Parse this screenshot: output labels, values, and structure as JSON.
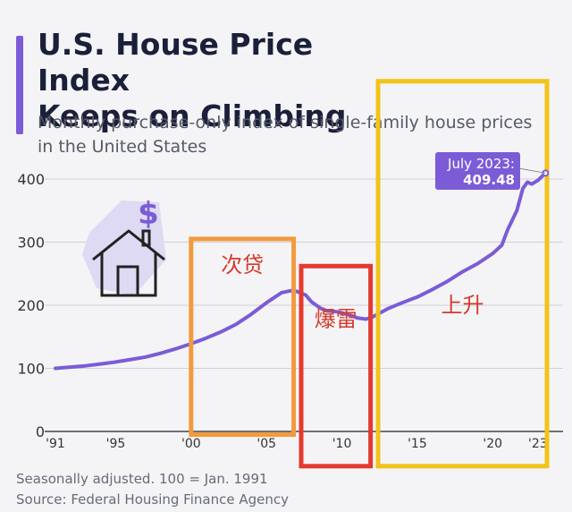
{
  "title_line1": "U.S. House Price Index",
  "title_line2": "Keeps on Climbing",
  "subtitle_line1": "Monthly purchase-only index of single-family house prices",
  "subtitle_line2": "in the United States",
  "footnote": "Seasonally adjusted. 100 = Jan. 1991",
  "source": "Source: Federal Housing Finance Agency",
  "colors": {
    "line": "#7b5cd6",
    "grid": "#cfcfd6",
    "orange_box": "#f39a3e",
    "red_box": "#e33a2f",
    "yellow_box": "#f2c318",
    "annotation_text": "#d43a2c",
    "callout_bg": "#7b5cd6",
    "icon_bg": "#dedaf3",
    "dollar": "#7b5cd6"
  },
  "callout": {
    "label": "July 2023:",
    "value": "409.48"
  },
  "annotations": [
    {
      "text": "次贷",
      "period": "subprime"
    },
    {
      "text": "爆雷",
      "period": "crash"
    },
    {
      "text": "上升",
      "period": "rise"
    }
  ],
  "icon": {
    "name": "house-dollar-icon",
    "glyph": "$"
  },
  "chart_data": {
    "type": "line",
    "title": "U.S. House Price Index Keeps on Climbing",
    "subtitle": "Monthly purchase-only index of single-family house prices in the United States",
    "xlabel": "",
    "ylabel": "",
    "ylim": [
      0,
      400
    ],
    "xlim": [
      1991,
      2023.6
    ],
    "yticks": [
      0,
      100,
      200,
      300,
      400
    ],
    "xticks": [
      {
        "value": 1991,
        "label": "'91"
      },
      {
        "value": 1995,
        "label": "'95"
      },
      {
        "value": 2000,
        "label": "'00"
      },
      {
        "value": 2005,
        "label": "'05"
      },
      {
        "value": 2010,
        "label": "'10"
      },
      {
        "value": 2015,
        "label": "'15"
      },
      {
        "value": 2020,
        "label": "'20"
      },
      {
        "value": 2023,
        "label": "'23"
      }
    ],
    "grid": true,
    "legend": "none",
    "series": [
      {
        "x": [
          1991,
          1992,
          1993,
          1994,
          1995,
          1996,
          1997,
          1998,
          1999,
          2000,
          2001,
          2002,
          2003,
          2004,
          2005,
          2006,
          2006.6,
          2007,
          2007.6,
          2008,
          2008.6,
          2009,
          2009.6,
          2010,
          2010.6,
          2011,
          2011.6,
          2012,
          2013,
          2014,
          2015,
          2016,
          2017,
          2018,
          2019,
          2020,
          2020.6,
          2021,
          2021.6,
          2022,
          2022.3,
          2022.6,
          2023,
          2023.5
        ],
        "y": [
          100,
          102,
          104,
          107,
          110,
          114,
          118,
          124,
          131,
          139,
          148,
          158,
          170,
          186,
          204,
          220,
          223,
          222,
          216,
          205,
          195,
          191,
          190,
          188,
          184,
          180,
          178,
          181,
          194,
          204,
          213,
          225,
          238,
          253,
          266,
          282,
          295,
          320,
          350,
          385,
          395,
          392,
          398,
          409.48
        ]
      }
    ],
    "annotation_boxes": [
      {
        "x0": 2000,
        "x1": 2006.8,
        "y0": -5,
        "y1": 305,
        "label": "次贷",
        "color": "orange"
      },
      {
        "x0": 2007.3,
        "x1": 2011.9,
        "y0": -55,
        "y1": 262,
        "label": "爆雷",
        "color": "red"
      },
      {
        "x0": 2012.4,
        "x1": 2023.6,
        "y0": -55,
        "y1": 555,
        "label": "上升",
        "color": "yellow"
      }
    ],
    "point_annotation": {
      "x": 2023.5,
      "y": 409.48,
      "label": "July 2023:",
      "value": "409.48"
    }
  }
}
